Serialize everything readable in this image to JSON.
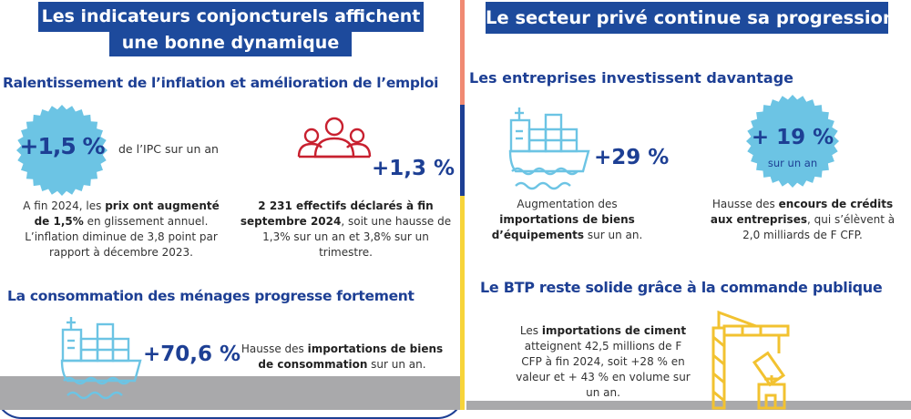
{
  "colors": {
    "header_bg": "#1d4a9c",
    "title": "#1d3f94",
    "badge": "#6cc4e4",
    "people_icon": "#c8202f",
    "crane_icon": "#f2c230",
    "strip": [
      "#f08a73",
      "#1d3f94",
      "#f7d43a"
    ]
  },
  "left": {
    "header": [
      "Les indicateurs conjoncturels affichent",
      "une bonne dynamique"
    ],
    "section1": {
      "title": "Ralentissement de l’inflation et amélioration de l’emploi",
      "badge_value": "+1,5 %",
      "badge_caption": "de l’IPC sur un an",
      "para1": [
        "A fin 2024, les ",
        "prix ont augmenté de 1,5%",
        " en glissement annuel. L’inflation diminue de 3,8 point par rapport à décembre 2023."
      ],
      "people_icon": "people-group-icon",
      "value2": "+1,3 %",
      "para2": [
        "2 231 effectifs déclarés à fin septembre 2024",
        ", soit une hausse de 1,3% sur un an et 3,8% sur un trimestre."
      ]
    },
    "section2": {
      "title": "La consommation des ménages progresse fortement",
      "ship_icon": "cargo-ship-icon",
      "value": "+70,6 %",
      "para": [
        "Hausse des ",
        "importations de biens de consommation",
        " sur un an."
      ]
    }
  },
  "right": {
    "header": "Le secteur privé continue sa progression",
    "section1": {
      "title": "Les entreprises investissent davantage",
      "ship_icon": "cargo-ship-icon",
      "value": "+29 %",
      "para1": [
        "Augmentation des ",
        "importations de biens d’équipements",
        " sur un an."
      ],
      "badge_value": "+ 19 %",
      "badge_caption": "sur un an",
      "para2": [
        "Hausse des ",
        "encours de crédits aux entreprises",
        ", qui s’élèvent à 2,0 milliards de F CFP."
      ]
    },
    "section2": {
      "title": "Le BTP reste solide grâce à la commande publique",
      "crane_icon": "crane-icon",
      "para": [
        "Les ",
        "importations de ciment",
        " atteignent 42,5 millions de F CFP à fin 2024, soit +28 % en valeur et + 43 % en volume sur un an."
      ]
    }
  }
}
